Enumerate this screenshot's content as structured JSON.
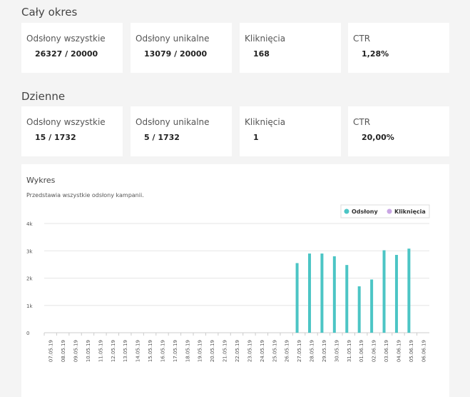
{
  "sections": [
    {
      "title": "Cały okres",
      "cards": [
        {
          "label": "Odsłony wszystkie",
          "value": "26327 / 20000"
        },
        {
          "label": "Odsłony unikalne",
          "value": "13079 / 20000"
        },
        {
          "label": "Kliknięcia",
          "value": "168"
        },
        {
          "label": "CTR",
          "value": "1,28%"
        }
      ]
    },
    {
      "title": "Dzienne",
      "cards": [
        {
          "label": "Odsłony wszystkie",
          "value": "15 / 1732"
        },
        {
          "label": "Odsłony unikalne",
          "value": "5 / 1732"
        },
        {
          "label": "Kliknięcia",
          "value": "1"
        },
        {
          "label": "CTR",
          "value": "20,00%"
        }
      ]
    }
  ],
  "chart_data": {
    "type": "bar",
    "title": "Wykres",
    "subtitle": "Przedstawia wszystkie odsłony kampanii.",
    "categories": [
      "07.05.19",
      "08.05.19",
      "09.05.19",
      "10.05.19",
      "11.05.19",
      "12.05.19",
      "13.05.19",
      "14.05.19",
      "15.05.19",
      "16.05.19",
      "17.05.19",
      "18.05.19",
      "19.05.19",
      "20.05.19",
      "21.05.19",
      "22.05.19",
      "23.05.19",
      "24.05.19",
      "25.05.19",
      "26.05.19",
      "27.05.19",
      "28.05.19",
      "29.05.19",
      "30.05.19",
      "31.05.19",
      "01.06.19",
      "02.06.19",
      "03.06.19",
      "04.06.19",
      "05.06.19",
      "06.06.19"
    ],
    "series": [
      {
        "name": "Odsłony",
        "color": "#4cc5c5",
        "values": [
          0,
          0,
          0,
          0,
          0,
          0,
          0,
          0,
          0,
          0,
          0,
          0,
          0,
          0,
          0,
          0,
          0,
          0,
          0,
          0,
          2550,
          2900,
          2900,
          2800,
          2480,
          1700,
          1950,
          3020,
          2850,
          3080,
          0
        ]
      },
      {
        "name": "Kliknięcia",
        "color": "#c9a6e4",
        "values": [
          0,
          0,
          0,
          0,
          0,
          0,
          0,
          0,
          0,
          0,
          0,
          0,
          0,
          0,
          0,
          0,
          0,
          0,
          0,
          0,
          0,
          0,
          0,
          0,
          0,
          0,
          0,
          0,
          0,
          0,
          0
        ]
      }
    ],
    "ylim": [
      0,
      4000
    ],
    "yticks": [
      0,
      {
        "value": 1000,
        "label": "1k"
      },
      {
        "value": 2000,
        "label": "2k"
      },
      {
        "value": 3000,
        "label": "3k"
      },
      {
        "value": 4000,
        "label": "4k"
      }
    ],
    "grid": true,
    "legend": "top-right"
  }
}
